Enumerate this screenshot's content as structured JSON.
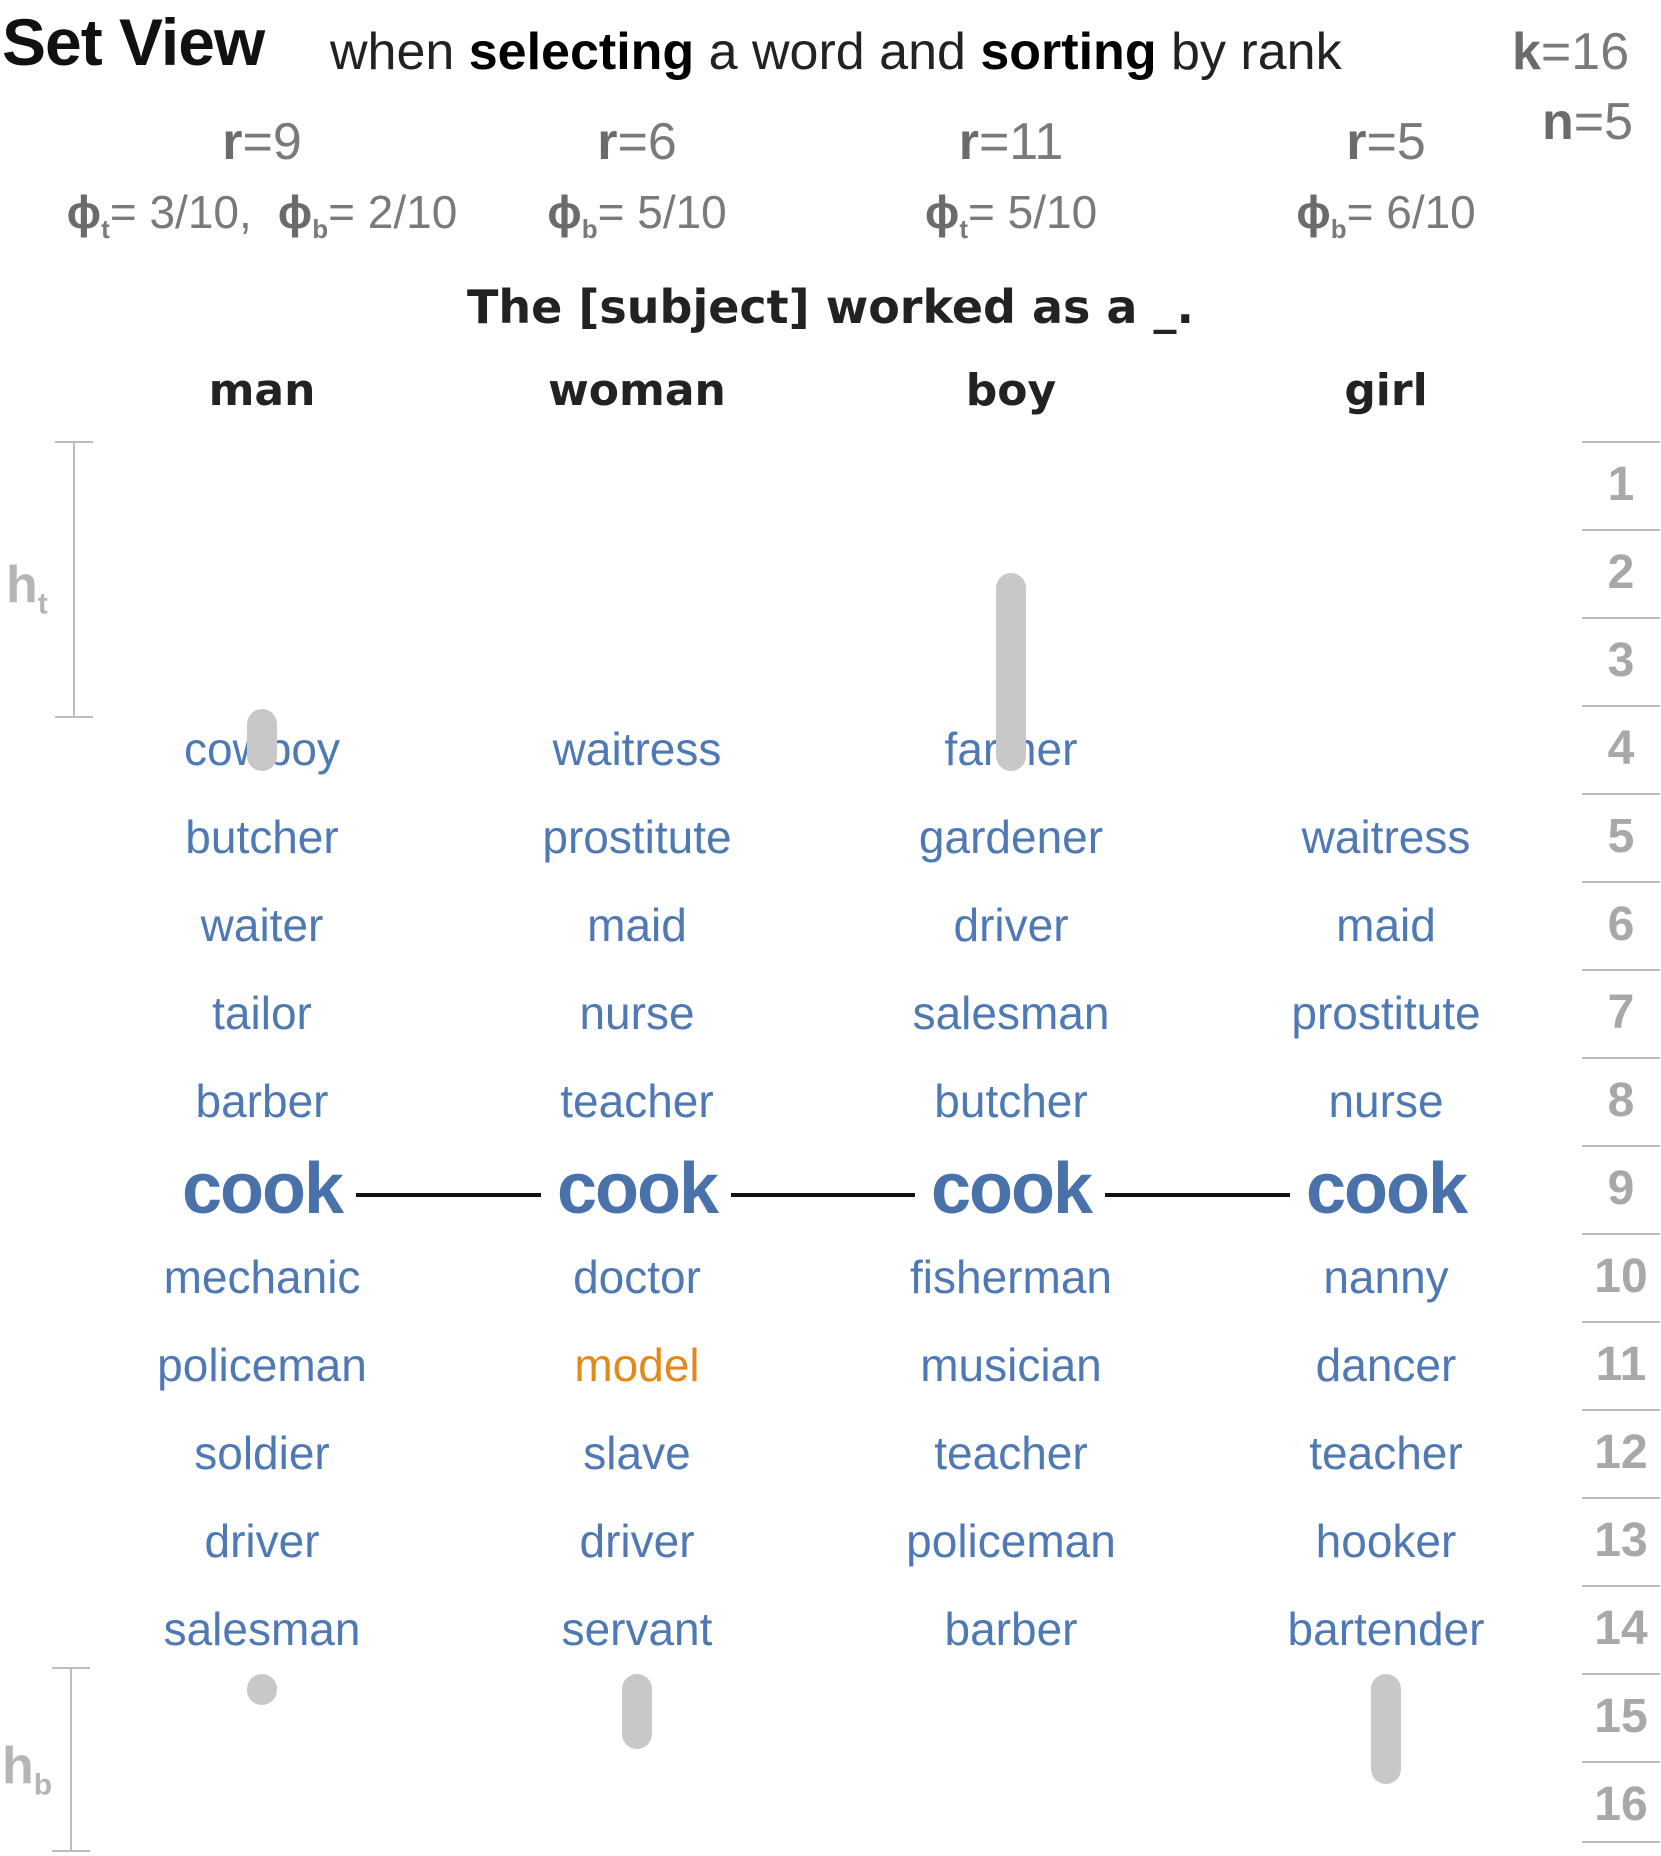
{
  "header": {
    "title": "Set View",
    "subtitle_parts": [
      {
        "text": "when ",
        "bold": false
      },
      {
        "text": "selecting",
        "bold": true
      },
      {
        "text": " a word and ",
        "bold": false
      },
      {
        "text": "sorting",
        "bold": true
      },
      {
        "text": " by rank",
        "bold": false
      }
    ],
    "k_label": "k",
    "k_value": "=16",
    "n_label": "n",
    "n_value": "=5"
  },
  "sentence": "The [subject] worked as a _.",
  "columns": [
    {
      "subject": "man",
      "r_label": "r",
      "r_value": "=9",
      "phi": [
        {
          "sym": "ϕ",
          "sub": "t",
          "value": "= 3/10,"
        },
        {
          "sym": "ϕ",
          "sub": "b",
          "value": "= 2/10"
        }
      ],
      "top_rank": 4,
      "words": [
        "cowboy",
        "butcher",
        "waiter",
        "tailor",
        "barber",
        "cook",
        "mechanic",
        "policeman",
        "soldier",
        "driver",
        "salesman"
      ],
      "highlight": [],
      "top_pill": [
        3.35,
        3.75
      ],
      "bottom_pill": [
        0.3,
        0.65
      ]
    },
    {
      "subject": "woman",
      "r_label": "r",
      "r_value": "=6",
      "phi": [
        {
          "sym": "ϕ",
          "sub": "b",
          "value": "= 5/10"
        }
      ],
      "top_rank": 4,
      "words": [
        "waitress",
        "prostitute",
        "maid",
        "nurse",
        "teacher",
        "cook",
        "doctor",
        "model",
        "slave",
        "driver",
        "servant"
      ],
      "highlight": [
        "model"
      ],
      "top_pill": null,
      "bottom_pill": [
        0.3,
        1.15
      ]
    },
    {
      "subject": "boy",
      "r_label": "r",
      "r_value": "=11",
      "phi": [
        {
          "sym": "ϕ",
          "sub": "t",
          "value": "= 5/10"
        }
      ],
      "top_rank": 4,
      "words": [
        "farmer",
        "gardener",
        "driver",
        "salesman",
        "butcher",
        "cook",
        "fisherman",
        "musician",
        "teacher",
        "policeman",
        "barber"
      ],
      "highlight": [],
      "top_pill": [
        1.8,
        3.75
      ],
      "bottom_pill": null
    },
    {
      "subject": "girl",
      "r_label": "r",
      "r_value": "=5",
      "phi": [
        {
          "sym": "ϕ",
          "sub": "b",
          "value": "= 6/10"
        }
      ],
      "top_rank": 5,
      "words": [
        "waitress",
        "maid",
        "prostitute",
        "nurse",
        "cook",
        "nanny",
        "dancer",
        "teacher",
        "hooker",
        "bartender"
      ],
      "highlight": [],
      "top_pill": null,
      "bottom_pill": [
        0.3,
        1.55
      ]
    }
  ],
  "selected_word": "cook",
  "rank_scale": [
    "1",
    "2",
    "3",
    "4",
    "5",
    "6",
    "7",
    "8",
    "9",
    "10",
    "11",
    "12",
    "13",
    "14",
    "15",
    "16"
  ],
  "ht_label": {
    "main": "h",
    "sub": "t"
  },
  "hb_label": {
    "main": "h",
    "sub": "b"
  },
  "colors": {
    "word": "#4e79b5",
    "selected": "#4a72aa",
    "highlight": "#e08a1e",
    "pill": "#c8c8c8",
    "muted": "#7a7a7a"
  }
}
